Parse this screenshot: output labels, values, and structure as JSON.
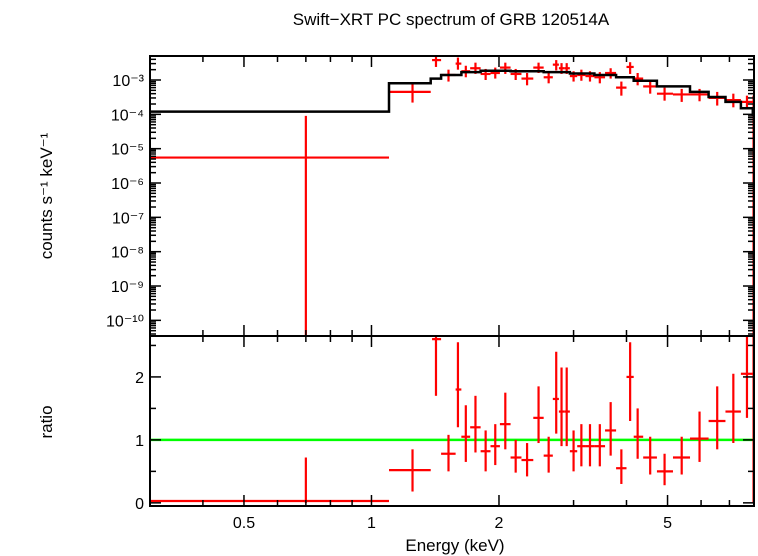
{
  "chart_data": [
    {
      "type": "line",
      "panel": "spectrum",
      "title": "Swift−XRT PC spectrum of GRB 120514A",
      "ylabel": "counts s⁻¹ keV⁻¹",
      "xscale": "log",
      "yscale": "log",
      "xlim": [
        0.3,
        8.0
      ],
      "ylim": [
        3.5e-11,
        0.005
      ],
      "y_ticks": [
        {
          "value": 1e-10,
          "label": "10⁻¹⁰"
        },
        {
          "value": 1e-09,
          "label": "10⁻⁹"
        },
        {
          "value": 1e-08,
          "label": "10⁻⁸"
        },
        {
          "value": 1e-07,
          "label": "10⁻⁷"
        },
        {
          "value": 1e-06,
          "label": "10⁻⁶"
        },
        {
          "value": 1e-05,
          "label": "10⁻⁵"
        },
        {
          "value": 0.0001,
          "label": "10⁻⁴"
        },
        {
          "value": 0.001,
          "label": "10⁻³"
        }
      ],
      "series": [
        {
          "kind": "data",
          "color": "#ff0000",
          "points": [
            {
              "x": 0.7,
              "xlo": 0.3,
              "xhi": 1.1,
              "y": 5.5e-06,
              "ylo": 3.5e-11,
              "yhi": 9e-05
            },
            {
              "x": 1.25,
              "xlo": 1.1,
              "xhi": 1.38,
              "y": 0.00045,
              "ylo": 0.00022,
              "yhi": 0.0008
            },
            {
              "x": 1.42,
              "xlo": 1.39,
              "xhi": 1.46,
              "y": 0.0038,
              "ylo": 0.0024,
              "yhi": 0.005
            },
            {
              "x": 1.52,
              "xlo": 1.46,
              "xhi": 1.58,
              "y": 0.0014,
              "ylo": 0.0009,
              "yhi": 0.002
            },
            {
              "x": 1.6,
              "xlo": 1.58,
              "xhi": 1.63,
              "y": 0.003,
              "ylo": 0.002,
              "yhi": 0.0045
            },
            {
              "x": 1.67,
              "xlo": 1.63,
              "xhi": 1.71,
              "y": 0.0018,
              "ylo": 0.0012,
              "yhi": 0.0026
            },
            {
              "x": 1.76,
              "xlo": 1.71,
              "xhi": 1.81,
              "y": 0.0022,
              "ylo": 0.0015,
              "yhi": 0.0032
            },
            {
              "x": 1.86,
              "xlo": 1.81,
              "xhi": 1.91,
              "y": 0.0015,
              "ylo": 0.001,
              "yhi": 0.0021
            },
            {
              "x": 1.96,
              "xlo": 1.91,
              "xhi": 2.01,
              "y": 0.0016,
              "ylo": 0.0011,
              "yhi": 0.0023
            },
            {
              "x": 2.07,
              "xlo": 2.01,
              "xhi": 2.13,
              "y": 0.0023,
              "ylo": 0.0015,
              "yhi": 0.0032
            },
            {
              "x": 2.19,
              "xlo": 2.13,
              "xhi": 2.26,
              "y": 0.0015,
              "ylo": 0.001,
              "yhi": 0.0021
            },
            {
              "x": 2.33,
              "xlo": 2.26,
              "xhi": 2.41,
              "y": 0.0011,
              "ylo": 0.0007,
              "yhi": 0.0016
            },
            {
              "x": 2.48,
              "xlo": 2.41,
              "xhi": 2.55,
              "y": 0.0023,
              "ylo": 0.0016,
              "yhi": 0.0032
            },
            {
              "x": 2.62,
              "xlo": 2.55,
              "xhi": 2.68,
              "y": 0.0012,
              "ylo": 0.0008,
              "yhi": 0.0017
            },
            {
              "x": 2.73,
              "xlo": 2.68,
              "xhi": 2.77,
              "y": 0.0028,
              "ylo": 0.0019,
              "yhi": 0.0038
            },
            {
              "x": 2.81,
              "xlo": 2.77,
              "xhi": 2.85,
              "y": 0.0022,
              "ylo": 0.0015,
              "yhi": 0.0031
            },
            {
              "x": 2.89,
              "xlo": 2.85,
              "xhi": 2.94,
              "y": 0.0022,
              "ylo": 0.0015,
              "yhi": 0.0031
            },
            {
              "x": 3.0,
              "xlo": 2.94,
              "xhi": 3.06,
              "y": 0.0013,
              "ylo": 0.0009,
              "yhi": 0.0018
            },
            {
              "x": 3.13,
              "xlo": 3.06,
              "xhi": 3.2,
              "y": 0.0014,
              "ylo": 0.00095,
              "yhi": 0.002
            },
            {
              "x": 3.28,
              "xlo": 3.2,
              "xhi": 3.36,
              "y": 0.0013,
              "ylo": 0.0009,
              "yhi": 0.0018
            },
            {
              "x": 3.46,
              "xlo": 3.36,
              "xhi": 3.56,
              "y": 0.0012,
              "ylo": 0.0008,
              "yhi": 0.0017
            },
            {
              "x": 3.67,
              "xlo": 3.56,
              "xhi": 3.78,
              "y": 0.0016,
              "ylo": 0.0011,
              "yhi": 0.0022
            },
            {
              "x": 3.89,
              "xlo": 3.78,
              "xhi": 4.0,
              "y": 0.0006,
              "ylo": 0.00035,
              "yhi": 0.0009
            },
            {
              "x": 4.08,
              "xlo": 4.0,
              "xhi": 4.16,
              "y": 0.0024,
              "ylo": 0.0015,
              "yhi": 0.0033
            },
            {
              "x": 4.25,
              "xlo": 4.16,
              "xhi": 4.38,
              "y": 0.0011,
              "ylo": 0.0007,
              "yhi": 0.0016
            },
            {
              "x": 4.55,
              "xlo": 4.38,
              "xhi": 4.72,
              "y": 0.00065,
              "ylo": 0.0004,
              "yhi": 0.00095
            },
            {
              "x": 4.92,
              "xlo": 4.72,
              "xhi": 5.15,
              "y": 0.0004,
              "ylo": 0.00025,
              "yhi": 0.0006
            },
            {
              "x": 5.4,
              "xlo": 5.15,
              "xhi": 5.65,
              "y": 0.00038,
              "ylo": 0.00023,
              "yhi": 0.00055
            },
            {
              "x": 5.95,
              "xlo": 5.65,
              "xhi": 6.25,
              "y": 0.00038,
              "ylo": 0.00024,
              "yhi": 0.00055
            },
            {
              "x": 6.55,
              "xlo": 6.25,
              "xhi": 6.85,
              "y": 0.0003,
              "ylo": 0.00018,
              "yhi": 0.00045
            },
            {
              "x": 7.15,
              "xlo": 6.85,
              "xhi": 7.45,
              "y": 0.00026,
              "ylo": 0.00016,
              "yhi": 0.0004
            },
            {
              "x": 7.7,
              "xlo": 7.45,
              "xhi": 7.95,
              "y": 0.00023,
              "ylo": 0.00014,
              "yhi": 0.00035
            },
            {
              "x": 7.98,
              "xlo": 7.95,
              "xhi": 8.0,
              "y": 0.0002,
              "ylo": 3.5e-11,
              "yhi": 0.00035
            }
          ]
        },
        {
          "kind": "model",
          "color": "#000000",
          "steps": [
            {
              "x0": 0.3,
              "x1": 1.1,
              "y": 0.00012
            },
            {
              "x0": 1.1,
              "x1": 1.38,
              "y": 0.0008
            },
            {
              "x0": 1.38,
              "x1": 1.46,
              "y": 0.0011
            },
            {
              "x0": 1.46,
              "x1": 1.63,
              "y": 0.0014
            },
            {
              "x0": 1.63,
              "x1": 1.81,
              "y": 0.0017
            },
            {
              "x0": 1.81,
              "x1": 2.13,
              "y": 0.00185
            },
            {
              "x0": 2.13,
              "x1": 2.55,
              "y": 0.0018
            },
            {
              "x0": 2.55,
              "x1": 2.94,
              "y": 0.0017
            },
            {
              "x0": 2.94,
              "x1": 3.36,
              "y": 0.00155
            },
            {
              "x0": 3.36,
              "x1": 3.78,
              "y": 0.0014
            },
            {
              "x0": 3.78,
              "x1": 4.16,
              "y": 0.0012
            },
            {
              "x0": 4.16,
              "x1": 4.72,
              "y": 0.00095
            },
            {
              "x0": 4.72,
              "x1": 5.65,
              "y": 0.00065
            },
            {
              "x0": 5.65,
              "x1": 6.25,
              "y": 0.00045
            },
            {
              "x0": 6.25,
              "x1": 6.85,
              "y": 0.00032
            },
            {
              "x0": 6.85,
              "x1": 7.45,
              "y": 0.00023
            },
            {
              "x0": 7.45,
              "x1": 7.95,
              "y": 0.00015
            },
            {
              "x0": 7.95,
              "x1": 8.0,
              "y": 0.0001
            }
          ]
        }
      ]
    },
    {
      "type": "line",
      "panel": "ratio",
      "xlabel": "Energy (keV)",
      "ylabel": "ratio",
      "xscale": "log",
      "yscale": "linear",
      "xlim": [
        0.3,
        8.0
      ],
      "ylim": [
        -0.05,
        2.65
      ],
      "x_ticks": [
        {
          "value": 0.5,
          "label": "0.5"
        },
        {
          "value": 1,
          "label": "1"
        },
        {
          "value": 2,
          "label": "2"
        },
        {
          "value": 5,
          "label": "5"
        }
      ],
      "y_ticks": [
        {
          "value": 0,
          "label": "0"
        },
        {
          "value": 1,
          "label": "1"
        },
        {
          "value": 2,
          "label": "2"
        }
      ],
      "reference_line": {
        "y": 1.0,
        "color": "#00ff00"
      },
      "series": [
        {
          "kind": "data",
          "color": "#ff0000",
          "points": [
            {
              "x": 0.7,
              "xlo": 0.3,
              "xhi": 1.1,
              "y": 0.03,
              "ylo": 0.0,
              "yhi": 0.72
            },
            {
              "x": 1.25,
              "xlo": 1.1,
              "xhi": 1.38,
              "y": 0.52,
              "ylo": 0.18,
              "yhi": 0.85
            },
            {
              "x": 1.42,
              "xlo": 1.39,
              "xhi": 1.46,
              "y": 2.6,
              "ylo": 1.7,
              "yhi": 2.65
            },
            {
              "x": 1.52,
              "xlo": 1.46,
              "xhi": 1.58,
              "y": 0.78,
              "ylo": 0.5,
              "yhi": 1.08
            },
            {
              "x": 1.6,
              "xlo": 1.58,
              "xhi": 1.63,
              "y": 1.8,
              "ylo": 1.2,
              "yhi": 2.55
            },
            {
              "x": 1.67,
              "xlo": 1.63,
              "xhi": 1.71,
              "y": 1.05,
              "ylo": 0.65,
              "yhi": 1.55
            },
            {
              "x": 1.76,
              "xlo": 1.71,
              "xhi": 1.81,
              "y": 1.2,
              "ylo": 0.8,
              "yhi": 1.7
            },
            {
              "x": 1.86,
              "xlo": 1.81,
              "xhi": 1.91,
              "y": 0.82,
              "ylo": 0.5,
              "yhi": 1.15
            },
            {
              "x": 1.96,
              "xlo": 1.91,
              "xhi": 2.01,
              "y": 0.9,
              "ylo": 0.6,
              "yhi": 1.25
            },
            {
              "x": 2.07,
              "xlo": 2.01,
              "xhi": 2.13,
              "y": 1.25,
              "ylo": 0.85,
              "yhi": 1.75
            },
            {
              "x": 2.19,
              "xlo": 2.13,
              "xhi": 2.26,
              "y": 0.72,
              "ylo": 0.48,
              "yhi": 1.0
            },
            {
              "x": 2.33,
              "xlo": 2.26,
              "xhi": 2.41,
              "y": 0.68,
              "ylo": 0.42,
              "yhi": 0.95
            },
            {
              "x": 2.48,
              "xlo": 2.41,
              "xhi": 2.55,
              "y": 1.35,
              "ylo": 0.95,
              "yhi": 1.85
            },
            {
              "x": 2.62,
              "xlo": 2.55,
              "xhi": 2.68,
              "y": 0.75,
              "ylo": 0.48,
              "yhi": 1.05
            },
            {
              "x": 2.73,
              "xlo": 2.68,
              "xhi": 2.77,
              "y": 1.65,
              "ylo": 1.1,
              "yhi": 2.4
            },
            {
              "x": 2.81,
              "xlo": 2.77,
              "xhi": 2.85,
              "y": 1.45,
              "ylo": 0.9,
              "yhi": 2.15
            },
            {
              "x": 2.89,
              "xlo": 2.85,
              "xhi": 2.94,
              "y": 1.45,
              "ylo": 0.9,
              "yhi": 2.15
            },
            {
              "x": 3.0,
              "xlo": 2.94,
              "xhi": 3.06,
              "y": 0.82,
              "ylo": 0.5,
              "yhi": 1.15
            },
            {
              "x": 3.13,
              "xlo": 3.06,
              "xhi": 3.2,
              "y": 0.9,
              "ylo": 0.58,
              "yhi": 1.25
            },
            {
              "x": 3.28,
              "xlo": 3.2,
              "xhi": 3.36,
              "y": 0.9,
              "ylo": 0.58,
              "yhi": 1.25
            },
            {
              "x": 3.46,
              "xlo": 3.36,
              "xhi": 3.56,
              "y": 0.9,
              "ylo": 0.58,
              "yhi": 1.25
            },
            {
              "x": 3.67,
              "xlo": 3.56,
              "xhi": 3.78,
              "y": 1.15,
              "ylo": 0.75,
              "yhi": 1.6
            },
            {
              "x": 3.89,
              "xlo": 3.78,
              "xhi": 4.0,
              "y": 0.55,
              "ylo": 0.3,
              "yhi": 0.85
            },
            {
              "x": 4.08,
              "xlo": 4.0,
              "xhi": 4.16,
              "y": 2.0,
              "ylo": 1.3,
              "yhi": 2.55
            },
            {
              "x": 4.25,
              "xlo": 4.16,
              "xhi": 4.38,
              "y": 1.05,
              "ylo": 0.7,
              "yhi": 1.5
            },
            {
              "x": 4.55,
              "xlo": 4.38,
              "xhi": 4.72,
              "y": 0.72,
              "ylo": 0.45,
              "yhi": 1.05
            },
            {
              "x": 4.92,
              "xlo": 4.72,
              "xhi": 5.15,
              "y": 0.5,
              "ylo": 0.28,
              "yhi": 0.78
            },
            {
              "x": 5.4,
              "xlo": 5.15,
              "xhi": 5.65,
              "y": 0.72,
              "ylo": 0.45,
              "yhi": 1.05
            },
            {
              "x": 5.95,
              "xlo": 5.65,
              "xhi": 6.25,
              "y": 1.02,
              "ylo": 0.65,
              "yhi": 1.45
            },
            {
              "x": 6.55,
              "xlo": 6.25,
              "xhi": 6.85,
              "y": 1.3,
              "ylo": 0.85,
              "yhi": 1.85
            },
            {
              "x": 7.15,
              "xlo": 6.85,
              "xhi": 7.45,
              "y": 1.45,
              "ylo": 0.95,
              "yhi": 2.05
            },
            {
              "x": 7.7,
              "xlo": 7.45,
              "xhi": 7.95,
              "y": 2.05,
              "ylo": 1.35,
              "yhi": 2.65
            },
            {
              "x": 7.98,
              "xlo": 7.95,
              "xhi": 8.0,
              "y": 1.95,
              "ylo": 0.0,
              "yhi": 2.65
            }
          ]
        }
      ]
    }
  ]
}
